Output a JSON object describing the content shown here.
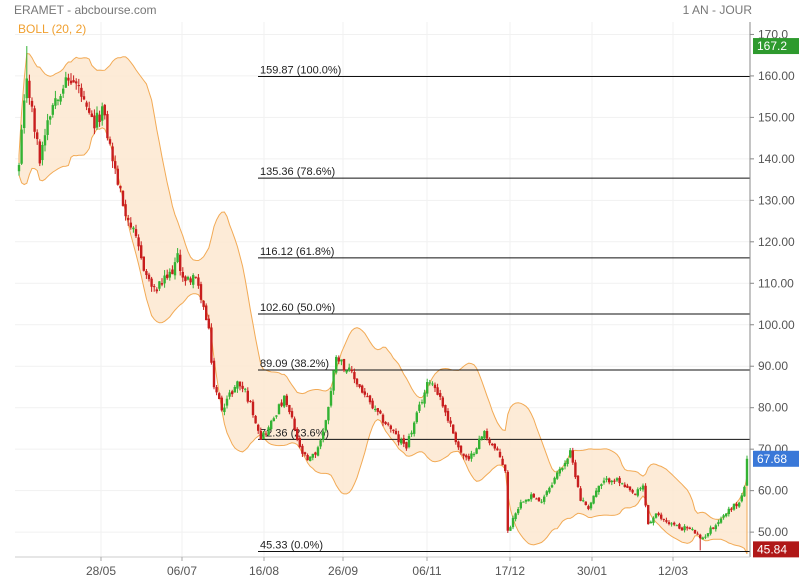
{
  "header": {
    "title": "ERAMET - abcbourse.com",
    "period": "1 AN - JOUR"
  },
  "chart_data": {
    "type": "candlestick",
    "indicator": "BOLL (20, 2)",
    "ylim": [
      44,
      173
    ],
    "yticks": [
      50,
      60,
      70,
      80,
      90,
      100,
      110,
      120,
      130,
      140,
      150,
      160,
      170
    ],
    "ytick_labels": [
      "50.00",
      "60.00",
      "70.00",
      "80.00",
      "90.00",
      "100.00",
      "110.00",
      "120.00",
      "130.00",
      "140.00",
      "150.00",
      "160.00",
      "170.0"
    ],
    "xticks": [
      "28/05",
      "06/07",
      "16/08",
      "26/09",
      "06/11",
      "17/12",
      "30/01",
      "12/03"
    ],
    "fibonacci": [
      {
        "value": 159.87,
        "label": "159.87  (100.0%)"
      },
      {
        "value": 135.36,
        "label": "135.36  (78.6%)"
      },
      {
        "value": 116.12,
        "label": "116.12  (61.8%)"
      },
      {
        "value": 102.6,
        "label": "102.60  (50.0%)"
      },
      {
        "value": 89.09,
        "label": "89.09  (38.2%)"
      },
      {
        "value": 72.36,
        "label": "72.36  (23.6%)"
      },
      {
        "value": 45.33,
        "label": "45.33  (0.0%)"
      }
    ],
    "markers": [
      {
        "value": 167.2,
        "label": "167.2",
        "color": "#2e9a2e"
      },
      {
        "value": 67.68,
        "label": "67.68",
        "color": "#3a78d8"
      },
      {
        "value": 45.84,
        "label": "45.84",
        "color": "#b01818"
      }
    ],
    "close_anchors": [
      [
        0,
        138
      ],
      [
        3,
        160
      ],
      [
        6,
        147
      ],
      [
        8,
        140
      ],
      [
        11,
        150
      ],
      [
        14,
        155
      ],
      [
        17,
        158
      ],
      [
        20,
        159
      ],
      [
        23,
        157
      ],
      [
        26,
        151
      ],
      [
        29,
        148
      ],
      [
        32,
        152
      ],
      [
        35,
        143
      ],
      [
        37,
        137
      ],
      [
        40,
        129
      ],
      [
        43,
        124
      ],
      [
        46,
        118
      ],
      [
        49,
        112
      ],
      [
        52,
        108
      ],
      [
        55,
        110
      ],
      [
        58,
        112
      ],
      [
        61,
        116
      ],
      [
        64,
        110
      ],
      [
        67,
        112
      ],
      [
        70,
        107
      ],
      [
        73,
        98
      ],
      [
        75,
        85
      ],
      [
        78,
        80
      ],
      [
        81,
        83
      ],
      [
        84,
        86
      ],
      [
        87,
        84
      ],
      [
        90,
        79
      ],
      [
        93,
        73
      ],
      [
        96,
        75
      ],
      [
        99,
        79
      ],
      [
        102,
        82
      ],
      [
        105,
        77
      ],
      [
        108,
        70
      ],
      [
        111,
        67
      ],
      [
        114,
        69
      ],
      [
        117,
        74
      ],
      [
        120,
        84
      ],
      [
        122,
        93
      ],
      [
        125,
        90
      ],
      [
        128,
        88
      ],
      [
        131,
        85
      ],
      [
        134,
        82
      ],
      [
        137,
        79
      ],
      [
        140,
        77
      ],
      [
        143,
        75
      ],
      [
        146,
        72
      ],
      [
        149,
        71
      ],
      [
        152,
        76
      ],
      [
        155,
        82
      ],
      [
        158,
        87
      ],
      [
        161,
        84
      ],
      [
        164,
        79
      ],
      [
        167,
        74
      ],
      [
        170,
        69
      ],
      [
        173,
        67
      ],
      [
        176,
        71
      ],
      [
        179,
        74
      ],
      [
        182,
        71
      ],
      [
        185,
        68
      ],
      [
        187,
        65
      ],
      [
        188,
        50
      ],
      [
        191,
        55
      ],
      [
        194,
        58
      ],
      [
        197,
        59
      ],
      [
        200,
        57
      ],
      [
        203,
        60
      ],
      [
        206,
        63
      ],
      [
        209,
        66
      ],
      [
        212,
        69
      ],
      [
        214,
        64
      ],
      [
        216,
        58
      ],
      [
        219,
        56
      ],
      [
        222,
        60
      ],
      [
        225,
        62
      ],
      [
        228,
        63
      ],
      [
        231,
        62
      ],
      [
        234,
        60
      ],
      [
        237,
        59
      ],
      [
        240,
        61
      ],
      [
        242,
        52
      ],
      [
        245,
        54
      ],
      [
        248,
        53
      ],
      [
        251,
        52
      ],
      [
        254,
        51
      ],
      [
        257,
        51
      ],
      [
        260,
        50
      ],
      [
        262,
        48
      ],
      [
        265,
        50
      ],
      [
        268,
        52
      ],
      [
        271,
        54
      ],
      [
        274,
        56
      ],
      [
        277,
        57
      ],
      [
        279,
        61
      ],
      [
        280,
        67.68
      ]
    ]
  }
}
